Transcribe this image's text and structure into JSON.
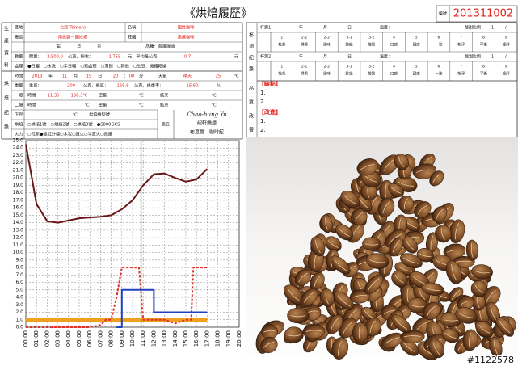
{
  "header": {
    "title": "《烘焙履歷》",
    "number_label": "編號",
    "number": "201311002"
  },
  "left_form": {
    "section_labels": [
      [
        "生",
        "產",
        "資",
        "料"
      ],
      [
        "烘",
        "焙",
        "記",
        "錄"
      ]
    ],
    "rows": [
      [
        "產地",
        "台灣(Taiwan)",
        "名稱",
        "國姓咖啡"
      ],
      [
        "產區",
        "南投縣－國姓鄉",
        "莊園",
        "惠蓀咖啡"
      ],
      [
        "年",
        "月",
        "日",
        "品種：各風咖啡"
      ],
      [
        "數量",
        "購置：",
        "2,500.0",
        "公克，採收：",
        "1,759",
        "元，平均每公克：",
        "0.7",
        "元"
      ],
      [
        "處理",
        "●日曬　○水洗　○半日曬　○蜜處理　○濕刨　○其他　○生豆：機器乾燥"
      ],
      [
        "時間",
        "2013",
        "年",
        "11",
        "月",
        "19",
        "日",
        "20",
        "：",
        "00",
        "分",
        "天氣",
        "晴天",
        "25",
        "℃"
      ],
      [
        "重量",
        "生豆：",
        "200",
        "公克，熟豆：",
        "168.8",
        "公克，失重率：",
        "15.60",
        "%"
      ],
      [
        "一爆",
        "時間",
        "11:35",
        "198.3℃",
        "密集",
        "℃",
        "結束",
        "℃"
      ],
      [
        "二爆",
        "時間",
        "℃",
        "密集",
        "℃",
        "結束",
        "℃"
      ],
      [
        "下豆",
        "℃",
        "烘焙機型號"
      ],
      [
        "烘焙",
        "○烘焙1號　○烘焙2號　○烘焙3號　●S800GCS"
      ],
      [
        "火力",
        "○瓦斯●遠紅外線○木炭○直火○半直火○熱風"
      ]
    ],
    "signature": {
      "label": "簽名",
      "name": "Chao-hung Yu",
      "lines": [
        "紹軒樂煙",
        "布夏爾　咖啡館"
      ]
    }
  },
  "right_form": {
    "section_labels": [
      [
        "杯",
        "測",
        "紀",
        "錄"
      ],
      [
        "品",
        "質",
        "改",
        "善"
      ]
    ],
    "cuppings": [
      {
        "label": "杯測1",
        "fields": [
          "年",
          "月",
          "日",
          "溫度：",
          "酸甜比例",
          "1",
          "/"
        ]
      },
      {
        "label": "杯測2",
        "fields": [
          "年",
          "月",
          "日",
          "溫度：",
          "酸甜比例",
          "1",
          "/"
        ]
      }
    ],
    "cup_headers": [
      "1",
      "2-1",
      "2-2",
      "3-1",
      "3-2",
      "4",
      "5",
      "6",
      "7",
      "8",
      "9"
    ],
    "cup_names": [
      "乾香",
      "濕香",
      "風味",
      "餘韻",
      "酸質",
      "口感",
      "甜度",
      "一致",
      "乾淨",
      "平衡",
      "總評"
    ],
    "defects": {
      "title": "【缺點】",
      "items": [
        "1.",
        "2."
      ]
    },
    "improvements": {
      "title": "【改進】",
      "items": [
        "1.",
        "2."
      ]
    }
  },
  "chart_data": {
    "type": "line",
    "xlim": [
      0,
      20
    ],
    "ylim": [
      0,
      25
    ],
    "grid": true,
    "xticks": [
      {
        "value": 0,
        "label": "00:00"
      },
      {
        "value": 1,
        "label": "01:00"
      },
      {
        "value": 2,
        "label": "02:00"
      },
      {
        "value": 3,
        "label": "03:00"
      },
      {
        "value": 4,
        "label": "04:00"
      },
      {
        "value": 5,
        "label": "05:00"
      },
      {
        "value": 6,
        "label": "06:00"
      },
      {
        "value": 7,
        "label": "07:00"
      },
      {
        "value": 8,
        "label": "08:00"
      },
      {
        "value": 9,
        "label": "09:00"
      },
      {
        "value": 10,
        "label": "10:00"
      },
      {
        "value": 11,
        "label": "11:00"
      },
      {
        "value": 12,
        "label": "12:00"
      },
      {
        "value": 13,
        "label": "13:00"
      },
      {
        "value": 14,
        "label": "14:00"
      },
      {
        "value": 15,
        "label": "15:00"
      },
      {
        "value": 16,
        "label": "16:00"
      },
      {
        "value": 17,
        "label": "17:00"
      },
      {
        "value": 18,
        "label": "18:00"
      },
      {
        "value": 19,
        "label": "19:00"
      },
      {
        "value": 20,
        "label": "20:00"
      }
    ],
    "yticks": [
      {
        "value": 0,
        "label": "0.0"
      },
      {
        "value": 1,
        "label": "1.0"
      },
      {
        "value": 2,
        "label": "2.0"
      },
      {
        "value": 3,
        "label": "3.0"
      },
      {
        "value": 4,
        "label": "4.0"
      },
      {
        "value": 5,
        "label": "5.0"
      },
      {
        "value": 6,
        "label": "6.0"
      },
      {
        "value": 7,
        "label": "7.0"
      },
      {
        "value": 8,
        "label": "8.0"
      },
      {
        "value": 9,
        "label": "9.0"
      },
      {
        "value": 10,
        "label": "10.0"
      },
      {
        "value": 11,
        "label": "11.0"
      },
      {
        "value": 12,
        "label": "12.0"
      },
      {
        "value": 13,
        "label": "13.0"
      },
      {
        "value": 14,
        "label": "14.0"
      },
      {
        "value": 15,
        "label": "15.0"
      },
      {
        "value": 16,
        "label": "16.0"
      },
      {
        "value": 17,
        "label": "17.0"
      },
      {
        "value": 18,
        "label": "18.0"
      },
      {
        "value": 19,
        "label": "19.0"
      },
      {
        "value": 20,
        "label": "20.0"
      },
      {
        "value": 21,
        "label": "21.0"
      },
      {
        "value": 22,
        "label": "22.0"
      },
      {
        "value": 23,
        "label": "23.0"
      },
      {
        "value": 24,
        "label": "24.0"
      },
      {
        "value": 25,
        "label": "25.0"
      }
    ],
    "series": [
      {
        "color": "#f0a020",
        "width": 5,
        "dashed": false,
        "x": [
          0,
          17
        ],
        "values": [
          1,
          1
        ]
      },
      {
        "color": "#e0302a",
        "width": 2,
        "dashed": true,
        "x": [
          0,
          6,
          7,
          7.5,
          8,
          8.5,
          9,
          10.6,
          11,
          12,
          13,
          14,
          15,
          15.5,
          15.7,
          17
        ],
        "values": [
          0,
          0,
          0.3,
          1,
          1,
          4,
          8,
          8,
          1,
          1,
          1,
          0.5,
          1,
          1,
          8,
          8
        ]
      },
      {
        "color": "#2040c0",
        "width": 2,
        "dashed": false,
        "x": [
          8.5,
          9,
          9,
          12,
          12,
          17
        ],
        "values": [
          0,
          0,
          5,
          5,
          2,
          2
        ]
      },
      {
        "color": "#6a1518",
        "width": 2,
        "dashed": false,
        "x": [
          0,
          1,
          2,
          3,
          4,
          5,
          6,
          7,
          8,
          9,
          10,
          11,
          12,
          13,
          14,
          15,
          16,
          17
        ],
        "values": [
          24.5,
          16.5,
          14.2,
          14.0,
          14.3,
          14.6,
          14.7,
          14.8,
          15.0,
          15.8,
          17.0,
          19.0,
          20.5,
          20.6,
          20.0,
          19.5,
          19.8,
          21.2
        ]
      }
    ],
    "vlines": [
      {
        "x": 10.8,
        "color": "#2ca02c"
      }
    ]
  },
  "watermark": "#1122578"
}
